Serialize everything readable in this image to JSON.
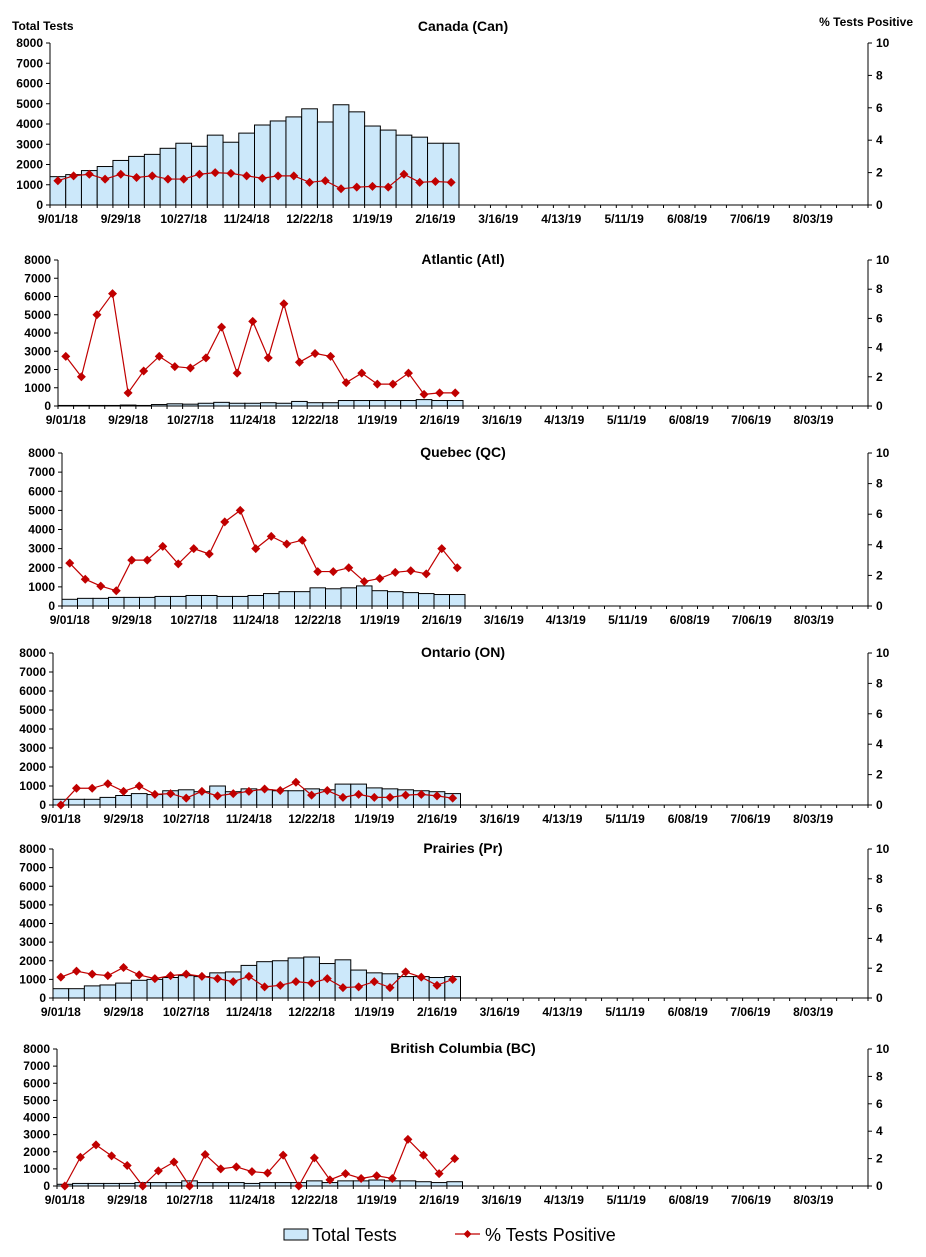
{
  "colors": {
    "bar_fill": "#cce8fa",
    "bar_stroke": "#000000",
    "line": "#c00000"
  },
  "legend": {
    "bars": "Total Tests",
    "line": "% Tests Positive",
    "placement": "bottom"
  },
  "chart_data": [
    {
      "type": "bar+line",
      "title": "Canada (Can)",
      "ylabel": "Total Tests",
      "y2label": "% Tests Positive",
      "ylim": [
        0,
        8000
      ],
      "y2lim": [
        0,
        10
      ],
      "yticks": [
        0,
        1000,
        2000,
        3000,
        4000,
        5000,
        6000,
        7000,
        8000
      ],
      "y2ticks": [
        0,
        2,
        4,
        6,
        8,
        10
      ],
      "xticks": [
        "9/01/18",
        "9/29/18",
        "10/27/18",
        "11/24/18",
        "12/22/18",
        "1/19/19",
        "2/16/19",
        "3/16/19",
        "4/13/19",
        "5/11/19",
        "6/08/19",
        "7/06/19",
        "8/03/19"
      ],
      "series": [
        {
          "name": "Total Tests",
          "axis": "left",
          "values": [
            1400,
            1500,
            1700,
            1900,
            2200,
            2400,
            2500,
            2800,
            3050,
            2900,
            3450,
            3100,
            3550,
            3950,
            4150,
            4350,
            4750,
            4100,
            4950,
            4600,
            3900,
            3700,
            3450,
            3350,
            3050,
            3050
          ]
        },
        {
          "name": "% Tests Positive",
          "axis": "right",
          "values": [
            1.5,
            1.8,
            1.9,
            1.6,
            1.9,
            1.7,
            1.8,
            1.6,
            1.6,
            1.9,
            2.0,
            1.95,
            1.8,
            1.65,
            1.8,
            1.8,
            1.4,
            1.5,
            1.0,
            1.1,
            1.15,
            1.1,
            1.9,
            1.4,
            1.45,
            1.4
          ]
        }
      ]
    },
    {
      "type": "bar+line",
      "title": "Atlantic (Atl)",
      "ylim": [
        0,
        8000
      ],
      "y2lim": [
        0,
        10
      ],
      "yticks": [
        0,
        1000,
        2000,
        3000,
        4000,
        5000,
        6000,
        7000,
        8000
      ],
      "y2ticks": [
        0,
        2,
        4,
        6,
        8,
        10
      ],
      "xticks": [
        "9/01/18",
        "9/29/18",
        "10/27/18",
        "11/24/18",
        "12/22/18",
        "1/19/19",
        "2/16/19",
        "3/16/19",
        "4/13/19",
        "5/11/19",
        "6/08/19",
        "7/06/19",
        "8/03/19"
      ],
      "series": [
        {
          "name": "Total Tests",
          "axis": "left",
          "values": [
            30,
            30,
            30,
            30,
            50,
            30,
            80,
            120,
            100,
            150,
            200,
            150,
            150,
            180,
            150,
            250,
            180,
            180,
            300,
            300,
            300,
            300,
            300,
            350,
            300,
            300
          ]
        },
        {
          "name": "% Tests Positive",
          "axis": "right",
          "values": [
            3.4,
            2.0,
            6.25,
            7.7,
            0.9,
            2.4,
            3.4,
            2.7,
            2.6,
            3.3,
            5.4,
            2.25,
            5.8,
            3.3,
            7.0,
            3.0,
            3.6,
            3.4,
            1.6,
            2.25,
            1.5,
            1.5,
            2.25,
            0.8,
            0.9,
            0.9
          ]
        }
      ]
    },
    {
      "type": "bar+line",
      "title": "Quebec (QC)",
      "ylim": [
        0,
        8000
      ],
      "y2lim": [
        0,
        10
      ],
      "yticks": [
        0,
        1000,
        2000,
        3000,
        4000,
        5000,
        6000,
        7000,
        8000
      ],
      "y2ticks": [
        0,
        2,
        4,
        6,
        8,
        10
      ],
      "xticks": [
        "9/01/18",
        "9/29/18",
        "10/27/18",
        "11/24/18",
        "12/22/18",
        "1/19/19",
        "2/16/19",
        "3/16/19",
        "4/13/19",
        "5/11/19",
        "6/08/19",
        "7/06/19",
        "8/03/19"
      ],
      "series": [
        {
          "name": "Total Tests",
          "axis": "left",
          "values": [
            350,
            400,
            400,
            450,
            450,
            450,
            500,
            500,
            550,
            550,
            500,
            500,
            550,
            650,
            750,
            750,
            950,
            900,
            950,
            1050,
            800,
            750,
            700,
            650,
            600,
            600
          ]
        },
        {
          "name": "% Tests Positive",
          "axis": "right",
          "values": [
            2.8,
            1.75,
            1.3,
            1.0,
            3.0,
            3.0,
            3.9,
            2.75,
            3.75,
            3.4,
            5.5,
            6.25,
            3.75,
            4.55,
            4.05,
            4.3,
            2.25,
            2.25,
            2.5,
            1.6,
            1.8,
            2.2,
            2.3,
            2.1,
            3.75,
            2.5
          ]
        }
      ]
    },
    {
      "type": "bar+line",
      "title": "Ontario (ON)",
      "ylim": [
        0,
        8000
      ],
      "y2lim": [
        0,
        10
      ],
      "yticks": [
        0,
        1000,
        2000,
        3000,
        4000,
        5000,
        6000,
        7000,
        8000
      ],
      "y2ticks": [
        0,
        2,
        4,
        6,
        8,
        10
      ],
      "xticks": [
        "9/01/18",
        "9/29/18",
        "10/27/18",
        "11/24/18",
        "12/22/18",
        "1/19/19",
        "2/16/19",
        "3/16/19",
        "4/13/19",
        "5/11/19",
        "6/08/19",
        "7/06/19",
        "8/03/19"
      ],
      "series": [
        {
          "name": "Total Tests",
          "axis": "left",
          "values": [
            300,
            300,
            300,
            400,
            500,
            600,
            550,
            750,
            800,
            700,
            1000,
            700,
            850,
            800,
            750,
            750,
            850,
            800,
            1100,
            1100,
            900,
            850,
            800,
            750,
            700,
            600
          ]
        },
        {
          "name": "% Tests Positive",
          "axis": "right",
          "values": [
            0,
            1.1,
            1.1,
            1.4,
            0.9,
            1.25,
            0.7,
            0.75,
            0.45,
            0.9,
            0.6,
            0.75,
            0.9,
            1.05,
            0.95,
            1.5,
            0.65,
            0.95,
            0.5,
            0.7,
            0.5,
            0.5,
            0.65,
            0.7,
            0.6,
            0.45
          ]
        }
      ]
    },
    {
      "type": "bar+line",
      "title": "Prairies (Pr)",
      "ylim": [
        0,
        8000
      ],
      "y2lim": [
        0,
        10
      ],
      "yticks": [
        0,
        1000,
        2000,
        3000,
        4000,
        5000,
        6000,
        7000,
        8000
      ],
      "y2ticks": [
        0,
        2,
        4,
        6,
        8,
        10
      ],
      "xticks": [
        "9/01/18",
        "9/29/18",
        "10/27/18",
        "11/24/18",
        "12/22/18",
        "1/19/19",
        "2/16/19",
        "3/16/19",
        "4/13/19",
        "5/11/19",
        "6/08/19",
        "7/06/19",
        "8/03/19"
      ],
      "series": [
        {
          "name": "Total Tests",
          "axis": "left",
          "values": [
            500,
            500,
            650,
            700,
            800,
            950,
            1000,
            1100,
            1200,
            1150,
            1350,
            1400,
            1750,
            1950,
            2000,
            2150,
            2200,
            1850,
            2050,
            1500,
            1350,
            1300,
            1150,
            1150,
            1100,
            1150
          ]
        },
        {
          "name": "% Tests Positive",
          "axis": "right",
          "values": [
            1.4,
            1.8,
            1.6,
            1.5,
            2.05,
            1.55,
            1.3,
            1.5,
            1.6,
            1.45,
            1.3,
            1.1,
            1.45,
            0.75,
            0.85,
            1.1,
            1.0,
            1.3,
            0.7,
            0.75,
            1.1,
            0.7,
            1.75,
            1.4,
            0.85,
            1.25
          ]
        }
      ]
    },
    {
      "type": "bar+line",
      "title": "British Columbia (BC)",
      "ylim": [
        0,
        8000
      ],
      "y2lim": [
        0,
        10
      ],
      "yticks": [
        0,
        1000,
        2000,
        3000,
        4000,
        5000,
        6000,
        7000,
        8000
      ],
      "y2ticks": [
        0,
        2,
        4,
        6,
        8,
        10
      ],
      "xticks": [
        "9/01/18",
        "9/29/18",
        "10/27/18",
        "11/24/18",
        "12/22/18",
        "1/19/19",
        "2/16/19",
        "3/16/19",
        "4/13/19",
        "5/11/19",
        "6/08/19",
        "7/06/19",
        "8/03/19"
      ],
      "series": [
        {
          "name": "Total Tests",
          "axis": "left",
          "values": [
            100,
            150,
            150,
            150,
            150,
            200,
            200,
            200,
            300,
            200,
            200,
            200,
            150,
            200,
            200,
            200,
            300,
            200,
            300,
            300,
            350,
            300,
            300,
            250,
            200,
            250
          ]
        },
        {
          "name": "% Tests Positive",
          "axis": "right",
          "values": [
            0,
            2.1,
            3.0,
            2.2,
            1.5,
            0,
            1.1,
            1.75,
            0,
            2.3,
            1.25,
            1.4,
            1.05,
            0.95,
            2.25,
            0,
            2.05,
            0.45,
            0.9,
            0.55,
            0.75,
            0.55,
            3.4,
            2.25,
            0.9,
            2.0
          ]
        }
      ]
    }
  ]
}
